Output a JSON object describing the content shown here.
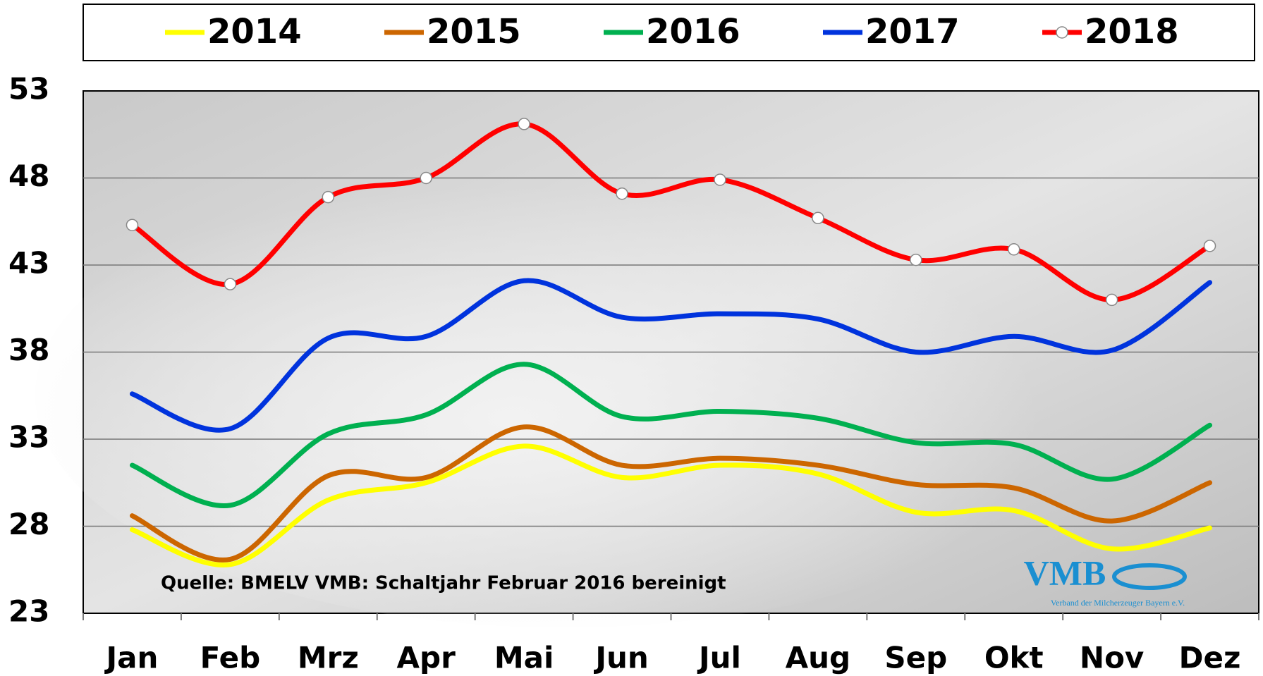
{
  "chart_data": {
    "type": "line",
    "categories": [
      "Jan",
      "Feb",
      "Mrz",
      "Apr",
      "Mai",
      "Jun",
      "Jul",
      "Aug",
      "Sep",
      "Okt",
      "Nov",
      "Dez"
    ],
    "series": [
      {
        "name": "2014",
        "color": "#ffff00",
        "values": [
          27.8,
          25.8,
          29.5,
          30.5,
          32.6,
          30.8,
          31.5,
          31.0,
          28.8,
          28.9,
          26.7,
          27.9
        ]
      },
      {
        "name": "2015",
        "color": "#cc6600",
        "values": [
          28.6,
          26.1,
          30.9,
          30.8,
          33.7,
          31.5,
          31.9,
          31.5,
          30.4,
          30.2,
          28.3,
          30.5
        ]
      },
      {
        "name": "2016",
        "color": "#00b050",
        "values": [
          31.5,
          29.2,
          33.3,
          34.4,
          37.3,
          34.3,
          34.6,
          34.2,
          32.8,
          32.7,
          30.7,
          33.8
        ]
      },
      {
        "name": "2017",
        "color": "#0033dd",
        "values": [
          35.6,
          33.6,
          38.8,
          38.9,
          42.1,
          40.0,
          40.2,
          39.9,
          38.0,
          38.9,
          38.1,
          42.0
        ]
      },
      {
        "name": "2018",
        "color": "#ff0000",
        "markers": true,
        "values": [
          45.3,
          41.9,
          46.9,
          48.0,
          51.1,
          47.1,
          47.9,
          45.7,
          43.3,
          43.9,
          41.0,
          44.1
        ]
      }
    ],
    "ylim": [
      23,
      53
    ],
    "yticks": [
      23,
      28,
      33,
      38,
      43,
      48,
      53
    ],
    "grid": true,
    "annotation": "Quelle: BMELV   VMB: Schaltjahr  Februar  2016  bereinigt",
    "logo": {
      "title": "VMB",
      "subtitle": "Verband der Milcherzeuger Bayern e.V."
    }
  }
}
